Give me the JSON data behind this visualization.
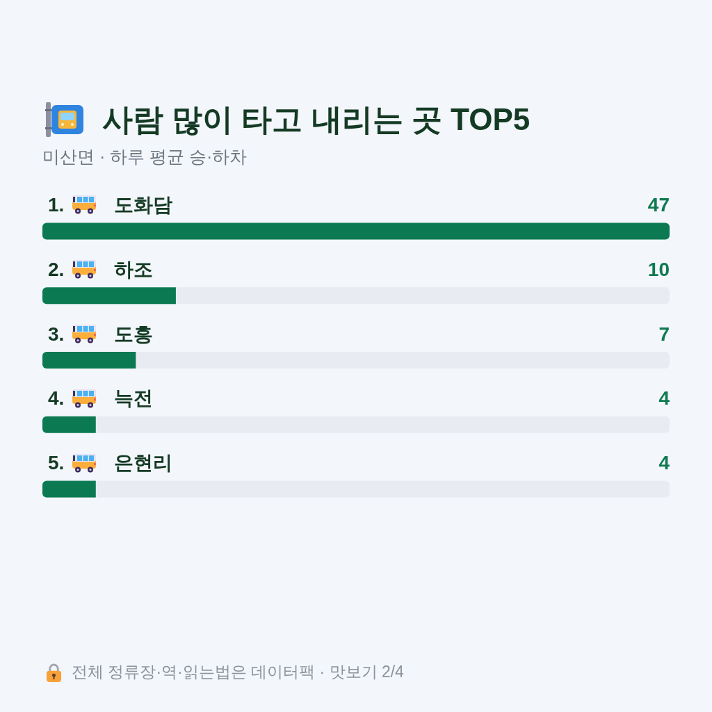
{
  "chart_data": {
    "type": "bar",
    "orientation": "horizontal",
    "title": "사람 많이 타고 내리는 곳 TOP5",
    "subtitle": "미산면 · 하루 평균 승·하차",
    "categories": [
      "1. 도화담",
      "2. 하조",
      "3. 도흥",
      "4. 늑전",
      "5. 은현리"
    ],
    "values": [
      47,
      10,
      7,
      4,
      4
    ],
    "color": "#0b7a52",
    "data_labels": true,
    "annotations": [
      "전체 정류장·역·읽는법은 데이터팩 · 맛보기 2/4"
    ]
  }
}
